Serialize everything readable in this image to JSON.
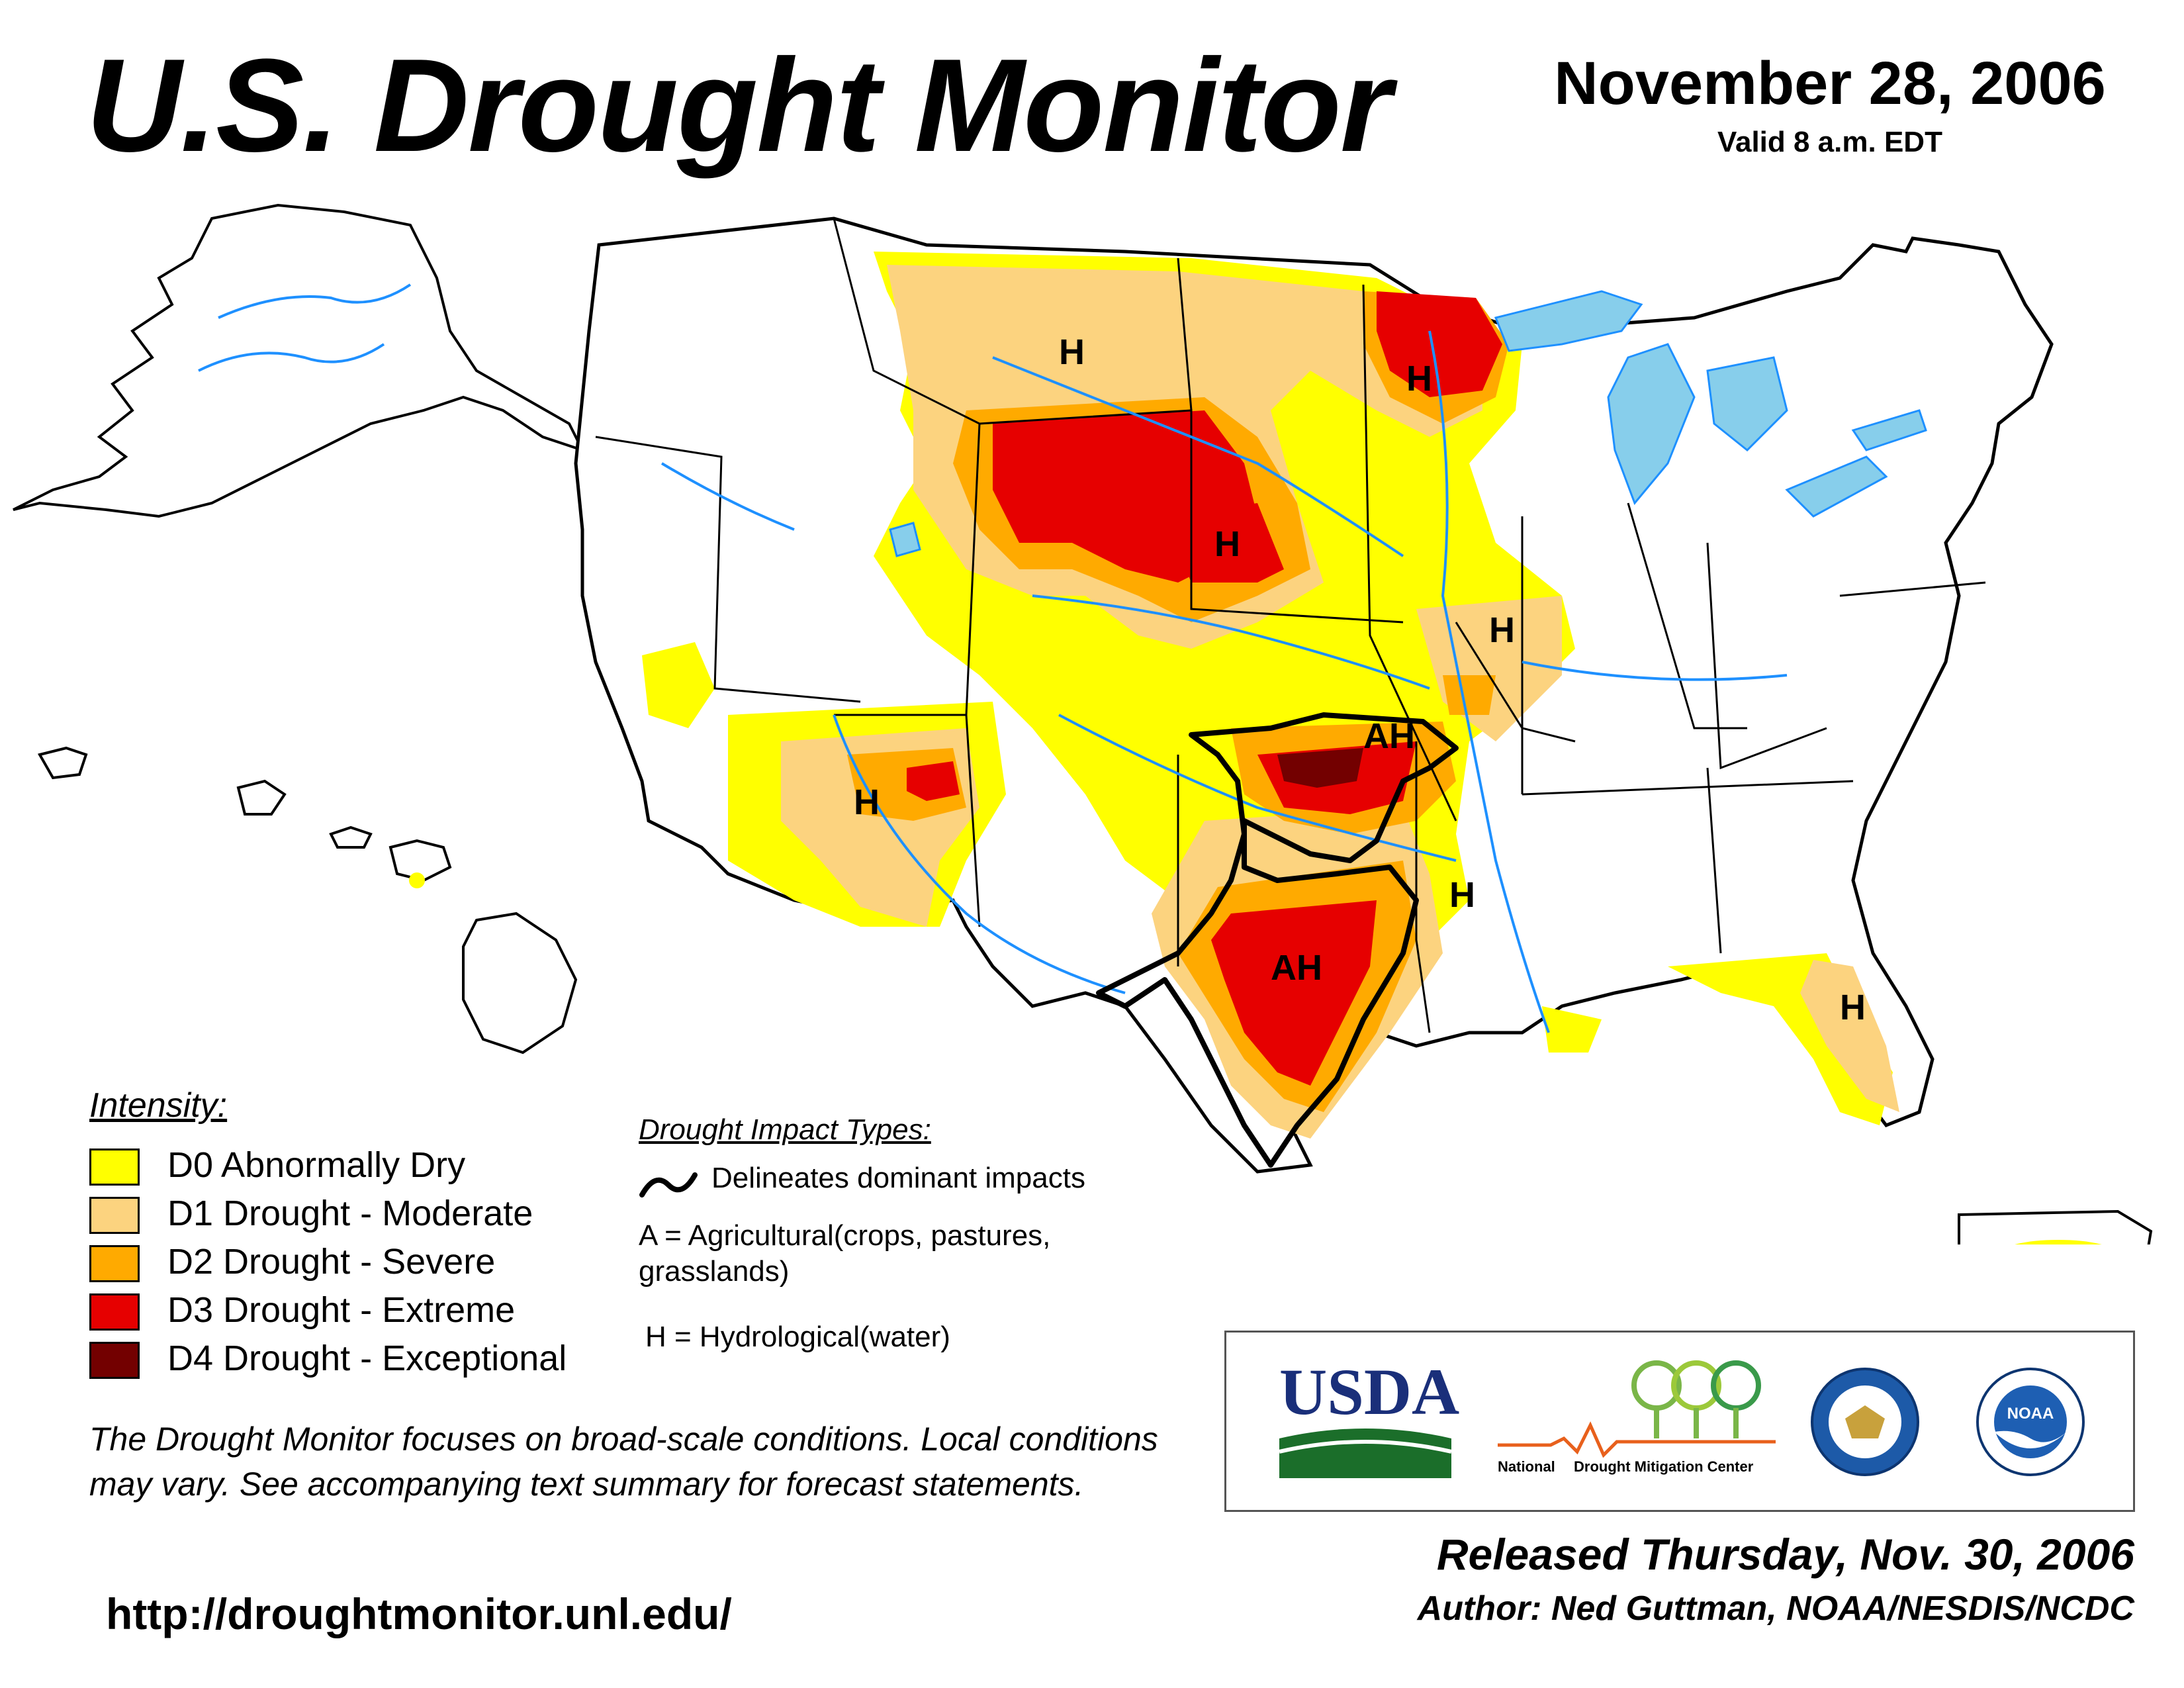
{
  "header": {
    "title": "U.S. Drought Monitor",
    "date": "November 28, 2006",
    "valid": "Valid 8 a.m. EDT"
  },
  "colors": {
    "D0": "#ffff00",
    "D1": "#fcd37f",
    "D2": "#ffaa00",
    "D3": "#e60000",
    "D4": "#730000",
    "water": "#87ceeb",
    "rivers": "#1e90ff",
    "boundaries": "#999999",
    "state_lines": "#000000"
  },
  "map": {
    "impact_labels": {
      "montana": "H",
      "minnesota": "H",
      "nebraska_sd": "H",
      "iowa": "H",
      "arizona": "H",
      "kansas_ok": "AH",
      "arkansas": "H",
      "texas": "AH",
      "florida": "H"
    }
  },
  "legend": {
    "heading": "Intensity:",
    "items": [
      {
        "code": "D0",
        "label": "D0 Abnormally Dry"
      },
      {
        "code": "D1",
        "label": "D1 Drought - Moderate"
      },
      {
        "code": "D2",
        "label": "D2 Drought - Severe"
      },
      {
        "code": "D3",
        "label": "D3 Drought - Extreme"
      },
      {
        "code": "D4",
        "label": "D4 Drought - Exceptional"
      }
    ]
  },
  "impacts": {
    "heading": "Drought Impact Types:",
    "line_label": "Delineates dominant impacts",
    "a_label": "A = Agricultural(crops, pastures, grasslands)",
    "h_label": "H = Hydrological(water)"
  },
  "footer": {
    "note": "The Drought Monitor focuses on broad-scale conditions. Local conditions may vary. See accompanying text summary for forecast statements.",
    "url": "http://droughtmonitor.unl.edu/",
    "released": "Released Thursday, Nov. 30, 2006",
    "author": "Author: Ned Guttman, NOAA/NESDIS/NCDC"
  },
  "logos": {
    "usda": "USDA",
    "ndmc_left": "National",
    "ndmc_right": "Drought Mitigation Center",
    "commerce_icon": "department-of-commerce-seal",
    "noaa": "NOAA"
  }
}
